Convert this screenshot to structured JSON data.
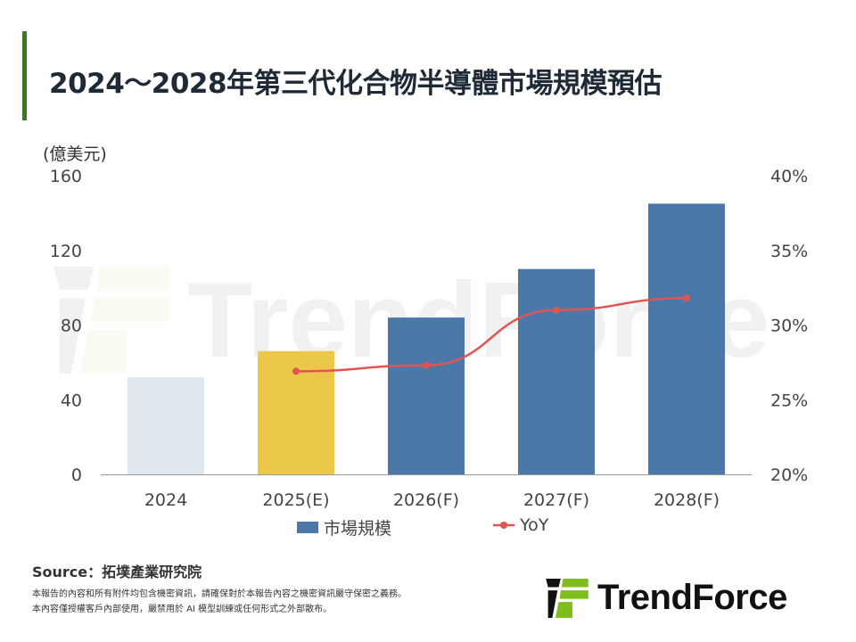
{
  "title": "2024～2028年第三代化合物半導體市場規模預估",
  "watermark": "TrendForce",
  "chart_data": {
    "type": "bar+line",
    "categories": [
      "2024",
      "2025(E)",
      "2026(F)",
      "2027(F)",
      "2028(F)"
    ],
    "series": [
      {
        "name": "市場規模",
        "type": "bar",
        "axis": "left",
        "values": [
          52,
          66,
          84,
          110,
          145
        ]
      },
      {
        "name": "YoY",
        "type": "line",
        "axis": "right",
        "values": [
          null,
          26.9,
          27.3,
          31.0,
          31.8
        ]
      }
    ],
    "bar_colors": [
      "#dfe6ee",
      "#ebc84a",
      "#4b78a8",
      "#4b78a8",
      "#4b78a8"
    ],
    "line_color": "#e05452",
    "ylabel": "(億美元)",
    "ylim": [
      0,
      160
    ],
    "yticks": [
      "0",
      "40",
      "80",
      "120",
      "160"
    ],
    "y2lim": [
      20,
      40
    ],
    "y2ticks": [
      "20%",
      "25%",
      "30%",
      "35%",
      "40%"
    ],
    "grid": false,
    "legend": "bottom"
  },
  "footer": {
    "source": "Source：拓墣產業研究院",
    "note1": "本報告的內容和所有附件均包含機密資訊，請確保對於本報告內容之機密資訊嚴守保密之義務。",
    "note2": "本內容僅授權客戶內部使用，嚴禁用於 AI 模型訓練或任何形式之外部散布。",
    "logo": "TrendForce"
  }
}
